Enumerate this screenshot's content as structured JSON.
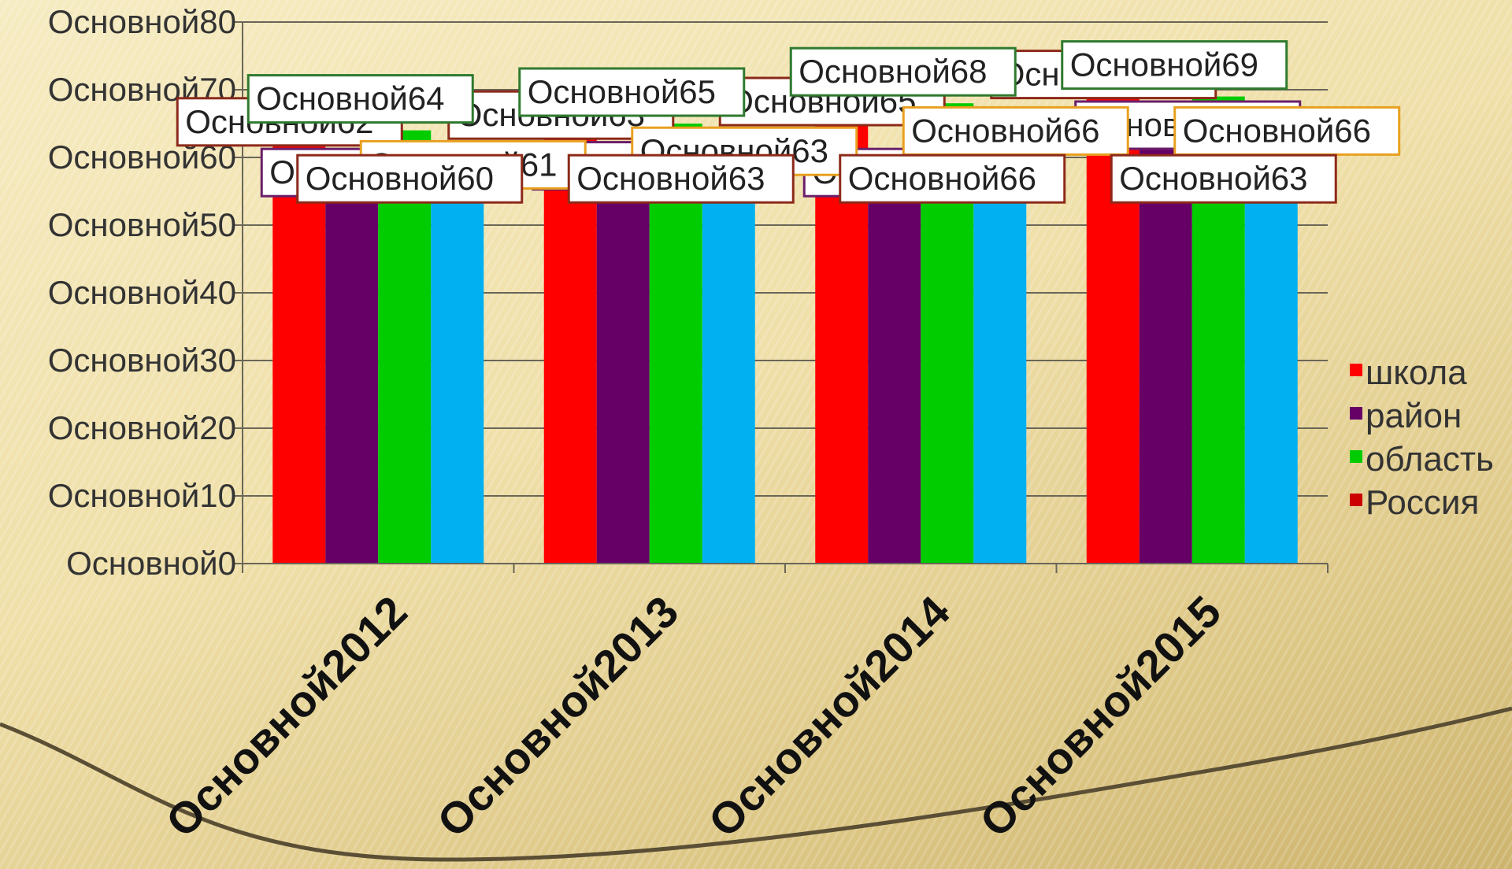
{
  "chart_data": {
    "type": "bar",
    "categories": [
      "Основной2012",
      "Основной2013",
      "Основной2014",
      "Основной2015"
    ],
    "series": [
      {
        "name": "школа",
        "values": [
          62,
          63,
          65,
          69
        ],
        "labels": [
          "Основной62",
          "Основной63",
          "Основной65",
          "Основной69"
        ],
        "color": "#ff0000"
      },
      {
        "name": "район",
        "values": [
          58,
          59,
          58,
          65
        ],
        "labels": [
          "Основной58",
          "Основной59",
          "Основной58",
          "Основной65"
        ],
        "color": "#660066"
      },
      {
        "name": "область",
        "values": [
          64,
          65,
          68,
          69
        ],
        "labels": [
          "Основной64",
          "Основной65",
          "Основной68",
          "Основной69"
        ],
        "color": "#00cc00"
      },
      {
        "name": "Россия",
        "values": [
          61,
          63,
          66,
          66
        ],
        "labels": [
          "Основной61",
          "Основной63",
          "Основной66",
          "Основной66"
        ],
        "color": "#00b0f0"
      }
    ],
    "extra_labels": [
      "Основной60",
      "Основной63",
      "Основной66",
      "Основной63"
    ],
    "y_tick_labels": [
      "Основной0",
      "Основной10",
      "Основной20",
      "Основной30",
      "Основной40",
      "Основной50",
      "Основной60",
      "Основной70",
      "Основной80"
    ],
    "ylim": [
      0,
      80
    ],
    "grid": true,
    "legend": {
      "placement": "right",
      "entries": [
        "школа",
        "район",
        "область",
        "Россия"
      ],
      "colors": [
        "#ff0000",
        "#660066",
        "#00cc00",
        "#cc0000"
      ]
    }
  }
}
